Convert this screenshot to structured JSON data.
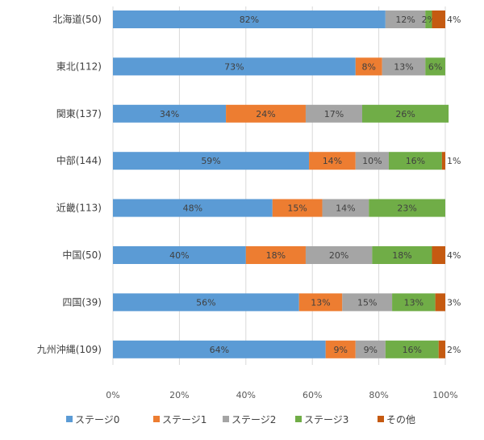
{
  "chart_data": {
    "type": "bar",
    "orientation": "horizontal",
    "stacked": true,
    "categories": [
      "北海道(50)",
      "東北(112)",
      "関東(137)",
      "中部(144)",
      "近畿(113)",
      "中国(50)",
      "四国(39)",
      "九州沖縄(109)"
    ],
    "series": [
      {
        "name": "ステージ0",
        "color": "#5b9bd5",
        "values": [
          82,
          73,
          34,
          59,
          48,
          40,
          56,
          64
        ],
        "labels": [
          "82%",
          "73%",
          "34%",
          "59%",
          "48%",
          "40%",
          "56%",
          "64%"
        ]
      },
      {
        "name": "ステージ1",
        "color": "#ed7d31",
        "values": [
          0,
          8,
          24,
          14,
          15,
          18,
          13,
          9
        ],
        "labels": [
          "",
          "8%",
          "24%",
          "14%",
          "15%",
          "18%",
          "13%",
          "9%"
        ]
      },
      {
        "name": "ステージ2",
        "color": "#a5a5a5",
        "values": [
          12,
          13,
          17,
          10,
          14,
          20,
          15,
          9
        ],
        "labels": [
          "12%",
          "13%",
          "17%",
          "10%",
          "14%",
          "20%",
          "15%",
          "9%"
        ]
      },
      {
        "name": "ステージ3",
        "color": "#70ad47",
        "values": [
          2,
          6,
          26,
          16,
          23,
          18,
          13,
          16
        ],
        "labels": [
          "2%",
          "6%",
          "26%",
          "16%",
          "23%",
          "18%",
          "13%",
          "16%"
        ]
      },
      {
        "name": "その他",
        "color": "#c55a11",
        "values": [
          4,
          0,
          0,
          1,
          0,
          4,
          3,
          2
        ],
        "labels": [
          "4%",
          "",
          "",
          "1%",
          "",
          "4%",
          "3%",
          "2%"
        ]
      }
    ],
    "xlim": [
      0,
      100
    ],
    "x_ticks": [
      "0%",
      "20%",
      "40%",
      "60%",
      "80%",
      "100%"
    ],
    "grid": "vertical",
    "legend_position": "bottom"
  }
}
